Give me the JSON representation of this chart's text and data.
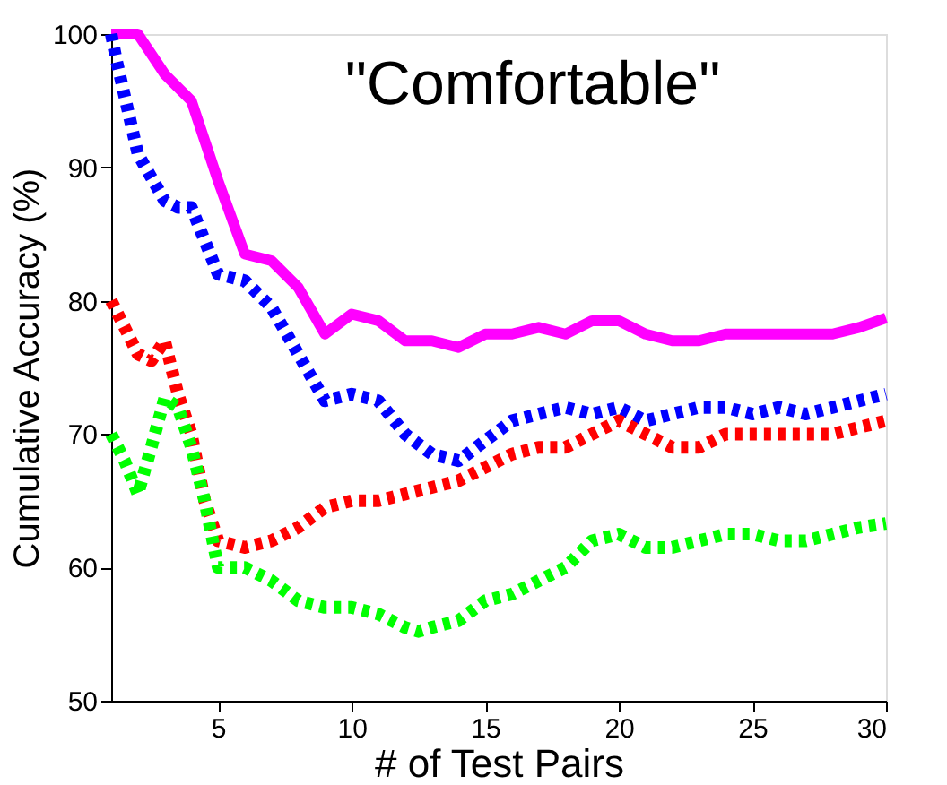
{
  "chart_data": {
    "type": "line",
    "title": "\"Comfortable\"",
    "xlabel": "# of Test Pairs",
    "ylabel": "Cumulative Accuracy (%)",
    "xlim": [
      1,
      30
    ],
    "xticks": [
      5,
      10,
      15,
      20,
      25,
      30
    ],
    "ylim": [
      50,
      100
    ],
    "yticks": [
      50,
      60,
      70,
      80,
      90,
      100
    ],
    "grid": false,
    "legend": false,
    "marker": "none",
    "series": [
      {
        "color": "#ff00ff",
        "line_style": "solid",
        "x": [
          1,
          2,
          3,
          4,
          5,
          6,
          7,
          8,
          9,
          10,
          11,
          12,
          13,
          14,
          15,
          16,
          17,
          18,
          19,
          20,
          21,
          22,
          23,
          24,
          25,
          26,
          27,
          28,
          29,
          30
        ],
        "values": [
          100,
          100,
          97,
          95,
          89,
          83.5,
          83,
          81,
          77.5,
          79,
          78.5,
          77,
          77,
          76.5,
          77.5,
          77.5,
          78,
          77.5,
          78.5,
          78.5,
          77.5,
          77,
          77,
          77.5,
          77.5,
          77.5,
          77.5,
          77.5,
          78,
          78.7
        ]
      },
      {
        "color": "#0000ff",
        "line_style": "dotted",
        "x": [
          1,
          1.2,
          2,
          3,
          3.5,
          4,
          5,
          6,
          7,
          8,
          9,
          10,
          11,
          12,
          13,
          14,
          15,
          16,
          17,
          18,
          19,
          20,
          21,
          22,
          23,
          24,
          25,
          26,
          27,
          28,
          29,
          30
        ],
        "values": [
          100,
          98,
          91,
          87.5,
          87,
          87,
          82,
          81.5,
          79.5,
          76,
          72.5,
          73,
          72.5,
          70,
          68.5,
          68,
          69.5,
          71,
          71.5,
          72,
          71.5,
          72,
          71,
          71.5,
          72,
          72,
          71.5,
          72,
          71.5,
          72,
          72.5,
          73
        ]
      },
      {
        "color": "#ff0000",
        "line_style": "dotted",
        "x": [
          1,
          2,
          2.5,
          3,
          3.5,
          4,
          4.5,
          5,
          6,
          7,
          8,
          9,
          10,
          11,
          12,
          13,
          14,
          15,
          16,
          17,
          18,
          19,
          20,
          21,
          22,
          23,
          24,
          25,
          26,
          27,
          28,
          29,
          30
        ],
        "values": [
          80,
          76,
          75.5,
          77,
          73,
          70,
          65,
          62,
          61.5,
          62,
          63,
          64.5,
          65,
          65,
          65.5,
          66,
          66.5,
          67.5,
          68.5,
          69,
          69,
          70,
          71,
          70,
          69,
          69,
          70,
          70,
          70,
          70,
          70,
          70.5,
          71
        ]
      },
      {
        "color": "#00ff00",
        "line_style": "dotted",
        "x": [
          1,
          1.5,
          2,
          2.5,
          3,
          3.5,
          4,
          4.5,
          5,
          6,
          7,
          8,
          9,
          10,
          11,
          12,
          12.5,
          13,
          14,
          15,
          16,
          17,
          18,
          19,
          20,
          21,
          22,
          23,
          24,
          25,
          26,
          27,
          28,
          29,
          30
        ],
        "values": [
          70,
          68,
          65.5,
          69,
          72.7,
          72,
          69,
          65,
          60,
          60,
          59,
          57.5,
          57,
          57,
          56.5,
          55.5,
          55.2,
          55.5,
          56,
          57.5,
          58,
          59,
          60,
          62,
          62.5,
          61.5,
          61.5,
          62,
          62.5,
          62.5,
          62,
          62,
          62.5,
          63,
          63.3
        ]
      }
    ]
  }
}
